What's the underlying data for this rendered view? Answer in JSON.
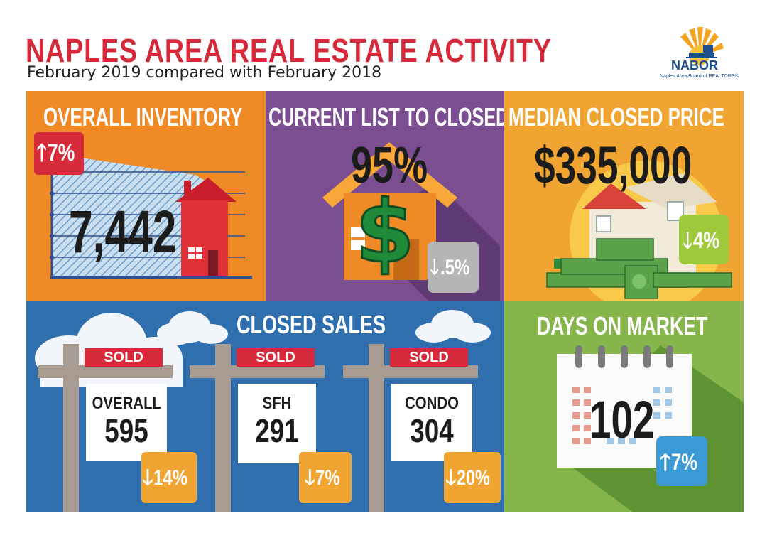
{
  "header": {
    "title": "NAPLES AREA REAL ESTATE ACTIVITY",
    "subtitle": "February 2019 compared with February 2018"
  },
  "logo": {
    "name": "NABOR",
    "tagline": "Naples Area Board of REALTORS®"
  },
  "inventory": {
    "heading": "OVERALL INVENTORY",
    "value": "7,442",
    "change": "7%",
    "direction": "up",
    "color": "#ef8a26"
  },
  "list_to_closed": {
    "heading": "CURRENT LIST TO CLOSED",
    "value": "95%",
    "change": ".5%",
    "direction": "down",
    "color": "#7b4e92"
  },
  "median_price": {
    "heading": "MEDIAN CLOSED PRICE",
    "value": "$335,000",
    "change": "4%",
    "direction": "down",
    "color": "#f0a532"
  },
  "closed_sales": {
    "heading": "CLOSED SALES",
    "sold_label": "SOLD",
    "color": "#2f6fae",
    "items": [
      {
        "label": "OVERALL",
        "value": "595",
        "change": "14%",
        "direction": "down"
      },
      {
        "label": "SFH",
        "value": "291",
        "change": "7%",
        "direction": "down"
      },
      {
        "label": "CONDO",
        "value": "304",
        "change": "20%",
        "direction": "down"
      }
    ]
  },
  "days_on_market": {
    "heading": "DAYS ON MARKET",
    "value": "102",
    "change": "7%",
    "direction": "up",
    "color": "#86b54c"
  }
}
